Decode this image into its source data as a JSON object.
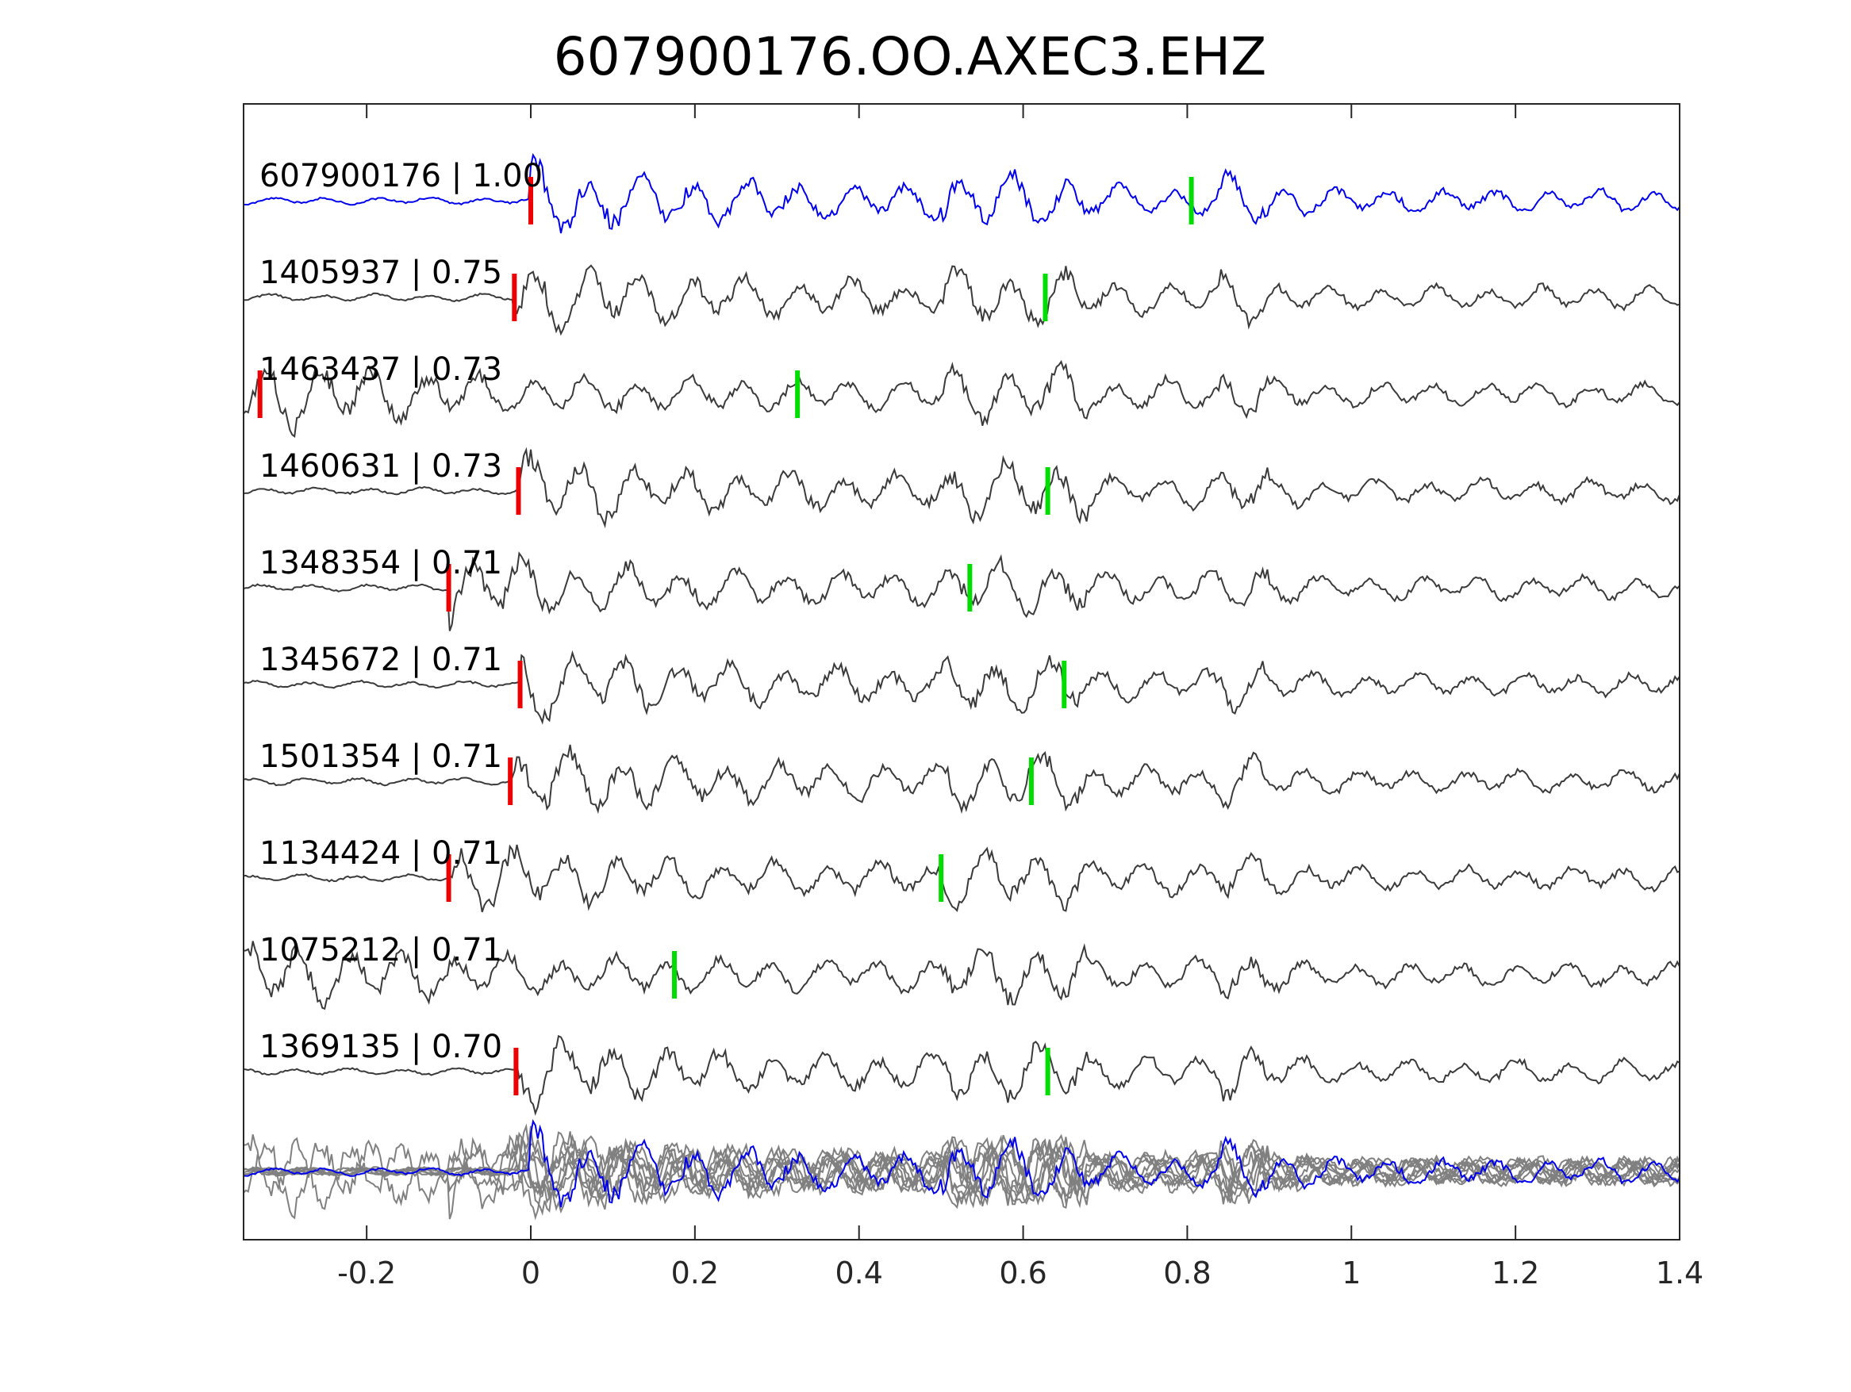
{
  "chart_data": {
    "type": "line",
    "title": "607900176.OO.AXEC3.EHZ",
    "xlabel": "",
    "ylabel": "",
    "xlim": [
      -0.35,
      1.4
    ],
    "xticks": [
      -0.2,
      0,
      0.2,
      0.4,
      0.6,
      0.8,
      1,
      1.2,
      1.4
    ],
    "xtick_labels": [
      "-0.2",
      "0",
      "0.2",
      "0.4",
      "0.6",
      "0.8",
      "1",
      "1.2",
      "1.4"
    ],
    "grid": false,
    "colors": {
      "primary": "#0000ee",
      "trace": "#3a3a3a",
      "overlay": "#808080",
      "p_pick": "#ee0000",
      "s_pick": "#00dd00",
      "axes": "#262626"
    },
    "series": [
      {
        "name": "607900176",
        "cc": "1.00",
        "label": "607900176 | 1.00",
        "p_pick": 0.0,
        "s_pick": 0.805,
        "onset": 0.0,
        "primary": true
      },
      {
        "name": "1405937",
        "cc": "0.75",
        "label": "1405937 | 0.75",
        "p_pick": -0.02,
        "s_pick": 0.627,
        "onset": -0.02
      },
      {
        "name": "1463437",
        "cc": "0.73",
        "label": "1463437 | 0.73",
        "p_pick": -0.33,
        "s_pick": 0.325,
        "onset": -0.33
      },
      {
        "name": "1460631",
        "cc": "0.73",
        "label": "1460631 | 0.73",
        "p_pick": -0.015,
        "s_pick": 0.63,
        "onset": -0.015
      },
      {
        "name": "1348354",
        "cc": "0.71",
        "label": "1348354 | 0.71",
        "p_pick": -0.1,
        "s_pick": 0.535,
        "onset": -0.1
      },
      {
        "name": "1345672",
        "cc": "0.71",
        "label": "1345672 | 0.71",
        "p_pick": -0.013,
        "s_pick": 0.65,
        "onset": -0.013
      },
      {
        "name": "1501354",
        "cc": "0.71",
        "label": "1501354 | 0.71",
        "p_pick": -0.025,
        "s_pick": 0.61,
        "onset": -0.025
      },
      {
        "name": "1134424",
        "cc": "0.71",
        "label": "1134424 | 0.71",
        "p_pick": -0.1,
        "s_pick": 0.5,
        "onset": -0.1
      },
      {
        "name": "1075212",
        "cc": "0.71",
        "label": "1075212 | 0.71",
        "p_pick": null,
        "s_pick": 0.175,
        "onset": -0.35
      },
      {
        "name": "1369135",
        "cc": "0.70",
        "label": "1369135 | 0.70",
        "p_pick": -0.018,
        "s_pick": 0.63,
        "onset": -0.018
      }
    ],
    "stack": {
      "description_visible": false
    }
  }
}
